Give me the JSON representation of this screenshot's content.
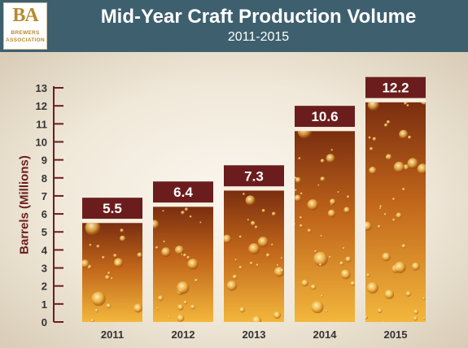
{
  "header": {
    "logo_mark": "BA",
    "logo_line1": "BREWERS",
    "logo_line2": "ASSOCIATION"
  },
  "colors": {
    "header_bg": "#3e5f6e",
    "label_box": "#6b1d1d",
    "axis": "#6b1d1d",
    "bar_top": "#7a2e10",
    "bar_bottom": "#f3b73c"
  },
  "chart_data": {
    "type": "bar",
    "title": "Mid-Year Craft Production Volume",
    "subtitle": "2011-2015",
    "xlabel": "",
    "ylabel": "Barrels (Millions)",
    "categories": [
      "2011",
      "2012",
      "2013",
      "2014",
      "2015"
    ],
    "values": [
      5.5,
      6.4,
      7.3,
      10.6,
      12.2
    ],
    "value_labels": [
      "5.5",
      "6.4",
      "7.3",
      "10.6",
      "12.2"
    ],
    "ylim": [
      0,
      13
    ],
    "yticks": [
      0,
      1,
      2,
      3,
      4,
      5,
      6,
      7,
      8,
      9,
      10,
      11,
      12,
      13
    ],
    "grid": false,
    "legend": "none",
    "bar_fill": "bubbles"
  }
}
